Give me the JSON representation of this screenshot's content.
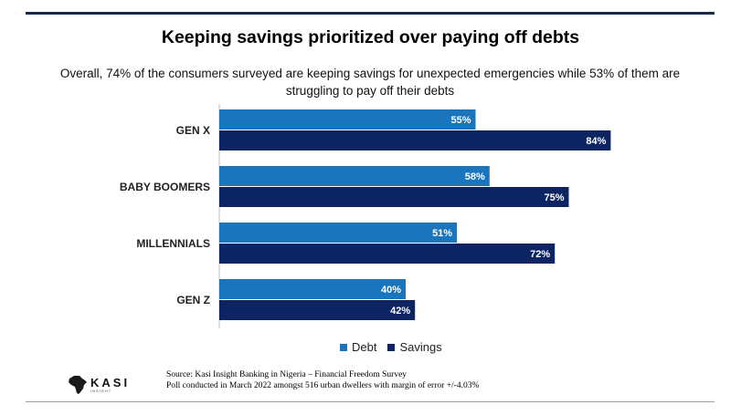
{
  "header": {
    "title": "Keeping savings prioritized over paying off debts",
    "subtitle": "Overall, 74% of the consumers surveyed are keeping savings for unexpected emergencies while 53% of them are struggling to pay off their debts"
  },
  "chart_data": {
    "type": "bar",
    "orientation": "horizontal",
    "categories": [
      "GEN X",
      "BABY BOOMERS",
      "MILLENNIALS",
      "GEN Z"
    ],
    "series": [
      {
        "name": "Debt",
        "values": [
          55,
          58,
          51,
          40
        ],
        "labels": [
          "55%",
          "58%",
          "51%",
          "40%"
        ],
        "color": "#1a75bc"
      },
      {
        "name": "Savings",
        "values": [
          84,
          75,
          72,
          42
        ],
        "labels": [
          "84%",
          "75%",
          "72%",
          "42%"
        ],
        "color": "#0d2463"
      }
    ],
    "xlim": [
      0,
      100
    ],
    "title": "Keeping savings prioritized over paying off debts",
    "xlabel": "",
    "ylabel": "",
    "legend": "bottom-center",
    "grid": false
  },
  "legend": {
    "debt_label": "Debt",
    "savings_label": "Savings"
  },
  "footer": {
    "logo_text": "KASI",
    "logo_tagline": "INSIGHT",
    "source_line1": "Source: Kasi Insight Banking in Nigeria – Financial Freedom Survey",
    "source_line2": "Poll conducted in March 2022 amongst 516 urban dwellers with margin of error +/-4.03%"
  },
  "colors": {
    "debt": "#1a75bc",
    "savings": "#0d2463",
    "rule": "#1b2a4a"
  },
  "icons": {
    "logo": "africa-map-icon"
  }
}
